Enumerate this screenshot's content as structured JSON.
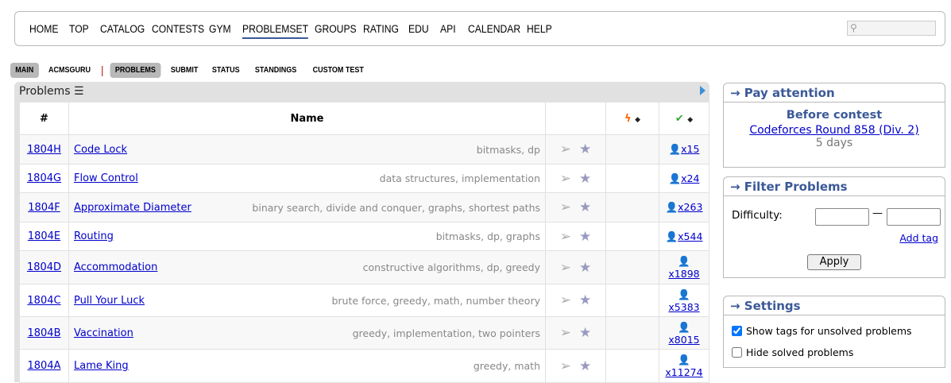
{
  "nav": {
    "items": [
      "HOME",
      "TOP",
      "CATALOG",
      "CONTESTS",
      "GYM",
      "PROBLEMSET",
      "GROUPS",
      "RATING",
      "EDU",
      "API",
      "CALENDAR",
      "HELP"
    ],
    "active": "PROBLEMSET"
  },
  "subnav": {
    "main": "MAIN",
    "acmsguru": "ACMSGURU",
    "problems": "PROBLEMS",
    "submit": "SUBMIT",
    "status": "STATUS",
    "standings": "STANDINGS",
    "custom_test": "CUSTOM TEST"
  },
  "problems": {
    "title": "Problems",
    "headers": {
      "num": "#",
      "name": "Name"
    },
    "rows": [
      {
        "id": "1804H",
        "name": "Code Lock",
        "tags": "bitmasks, dp",
        "solved": "x15"
      },
      {
        "id": "1804G",
        "name": "Flow Control",
        "tags": "data structures, implementation",
        "solved": "x24"
      },
      {
        "id": "1804F",
        "name": "Approximate Diameter",
        "tags": "binary search, divide and conquer, graphs, shortest paths",
        "solved": "x263"
      },
      {
        "id": "1804E",
        "name": "Routing",
        "tags": "bitmasks, dp, graphs",
        "solved": "x544"
      },
      {
        "id": "1804D",
        "name": "Accommodation",
        "tags": "constructive algorithms, dp, greedy",
        "solved": "x1898"
      },
      {
        "id": "1804C",
        "name": "Pull Your Luck",
        "tags": "brute force, greedy, math, number theory",
        "solved": "x5383"
      },
      {
        "id": "1804B",
        "name": "Vaccination",
        "tags": "greedy, implementation, two pointers",
        "solved": "x8015"
      },
      {
        "id": "1804A",
        "name": "Lame King",
        "tags": "greedy, math",
        "solved": "x11274"
      }
    ]
  },
  "pay": {
    "title": "→ Pay attention",
    "heading": "Before contest",
    "contest": "Codeforces Round 858 (Div. 2)",
    "time": "5 days"
  },
  "filter": {
    "title": "→ Filter Problems",
    "difficulty": "Difficulty:",
    "dash": "—",
    "add_tag": "Add tag",
    "apply": "Apply"
  },
  "settings": {
    "title": "→ Settings",
    "show_tags": "Show tags for unsolved problems",
    "show_tags_checked": true,
    "hide_solved": "Hide solved problems",
    "hide_solved_checked": false
  }
}
